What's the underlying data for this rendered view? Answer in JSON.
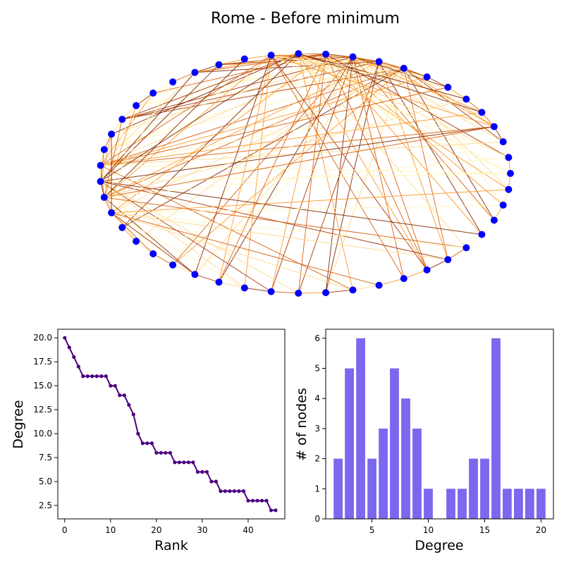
{
  "figure": {
    "title": "Rome - Before minimum"
  },
  "colors": {
    "node": "#0000ff",
    "rank_line": "#4b0082",
    "bar": "#7b68ee",
    "edge_palette": [
      "#fff5b8",
      "#fed98e",
      "#fe9929",
      "#d95f0e",
      "#a63603",
      "#7f2704"
    ]
  },
  "chart_data": [
    {
      "type": "network",
      "node_count": 47,
      "layout": "circular",
      "edges_color_map": "YlOrBr"
    },
    {
      "type": "line",
      "xlabel": "Rank",
      "ylabel": "Degree",
      "x": [
        0,
        1,
        2,
        3,
        4,
        5,
        6,
        7,
        8,
        9,
        10,
        11,
        12,
        13,
        14,
        15,
        16,
        17,
        18,
        19,
        20,
        21,
        22,
        23,
        24,
        25,
        26,
        27,
        28,
        29,
        30,
        31,
        32,
        33,
        34,
        35,
        36,
        37,
        38,
        39,
        40,
        41,
        42,
        43,
        44,
        45,
        46
      ],
      "y": [
        20,
        19,
        18,
        17,
        16,
        16,
        16,
        16,
        16,
        16,
        15,
        15,
        14,
        14,
        13,
        12,
        10,
        9,
        9,
        9,
        8,
        8,
        8,
        8,
        7,
        7,
        7,
        7,
        7,
        6,
        6,
        6,
        5,
        5,
        4,
        4,
        4,
        4,
        4,
        4,
        3,
        3,
        3,
        3,
        3,
        2,
        2
      ],
      "xlim": [
        -1.5,
        48
      ],
      "ylim": [
        1.1,
        20.9
      ],
      "xticks": [
        0,
        10,
        20,
        30,
        40
      ],
      "yticks": [
        2.5,
        5.0,
        7.5,
        10.0,
        12.5,
        15.0,
        17.5,
        20.0
      ],
      "xtick_labels": [
        "0",
        "10",
        "20",
        "30",
        "40"
      ],
      "ytick_labels": [
        "2.5",
        "5.0",
        "7.5",
        "10.0",
        "12.5",
        "15.0",
        "17.5",
        "20.0"
      ]
    },
    {
      "type": "bar",
      "xlabel": "Degree",
      "ylabel": "# of nodes",
      "categories": [
        2,
        3,
        4,
        5,
        6,
        7,
        8,
        9,
        10,
        12,
        13,
        14,
        15,
        16,
        17,
        18,
        19,
        20
      ],
      "values": [
        2,
        5,
        6,
        2,
        3,
        5,
        4,
        3,
        1,
        1,
        1,
        2,
        2,
        6,
        1,
        1,
        1,
        1
      ],
      "xlim": [
        0.9,
        21.1
      ],
      "ylim": [
        0,
        6.3
      ],
      "xticks": [
        5,
        10,
        15,
        20
      ],
      "yticks": [
        0,
        1,
        2,
        3,
        4,
        5,
        6
      ],
      "xtick_labels": [
        "5",
        "10",
        "15",
        "20"
      ],
      "ytick_labels": [
        "0",
        "1",
        "2",
        "3",
        "4",
        "5",
        "6"
      ]
    }
  ]
}
